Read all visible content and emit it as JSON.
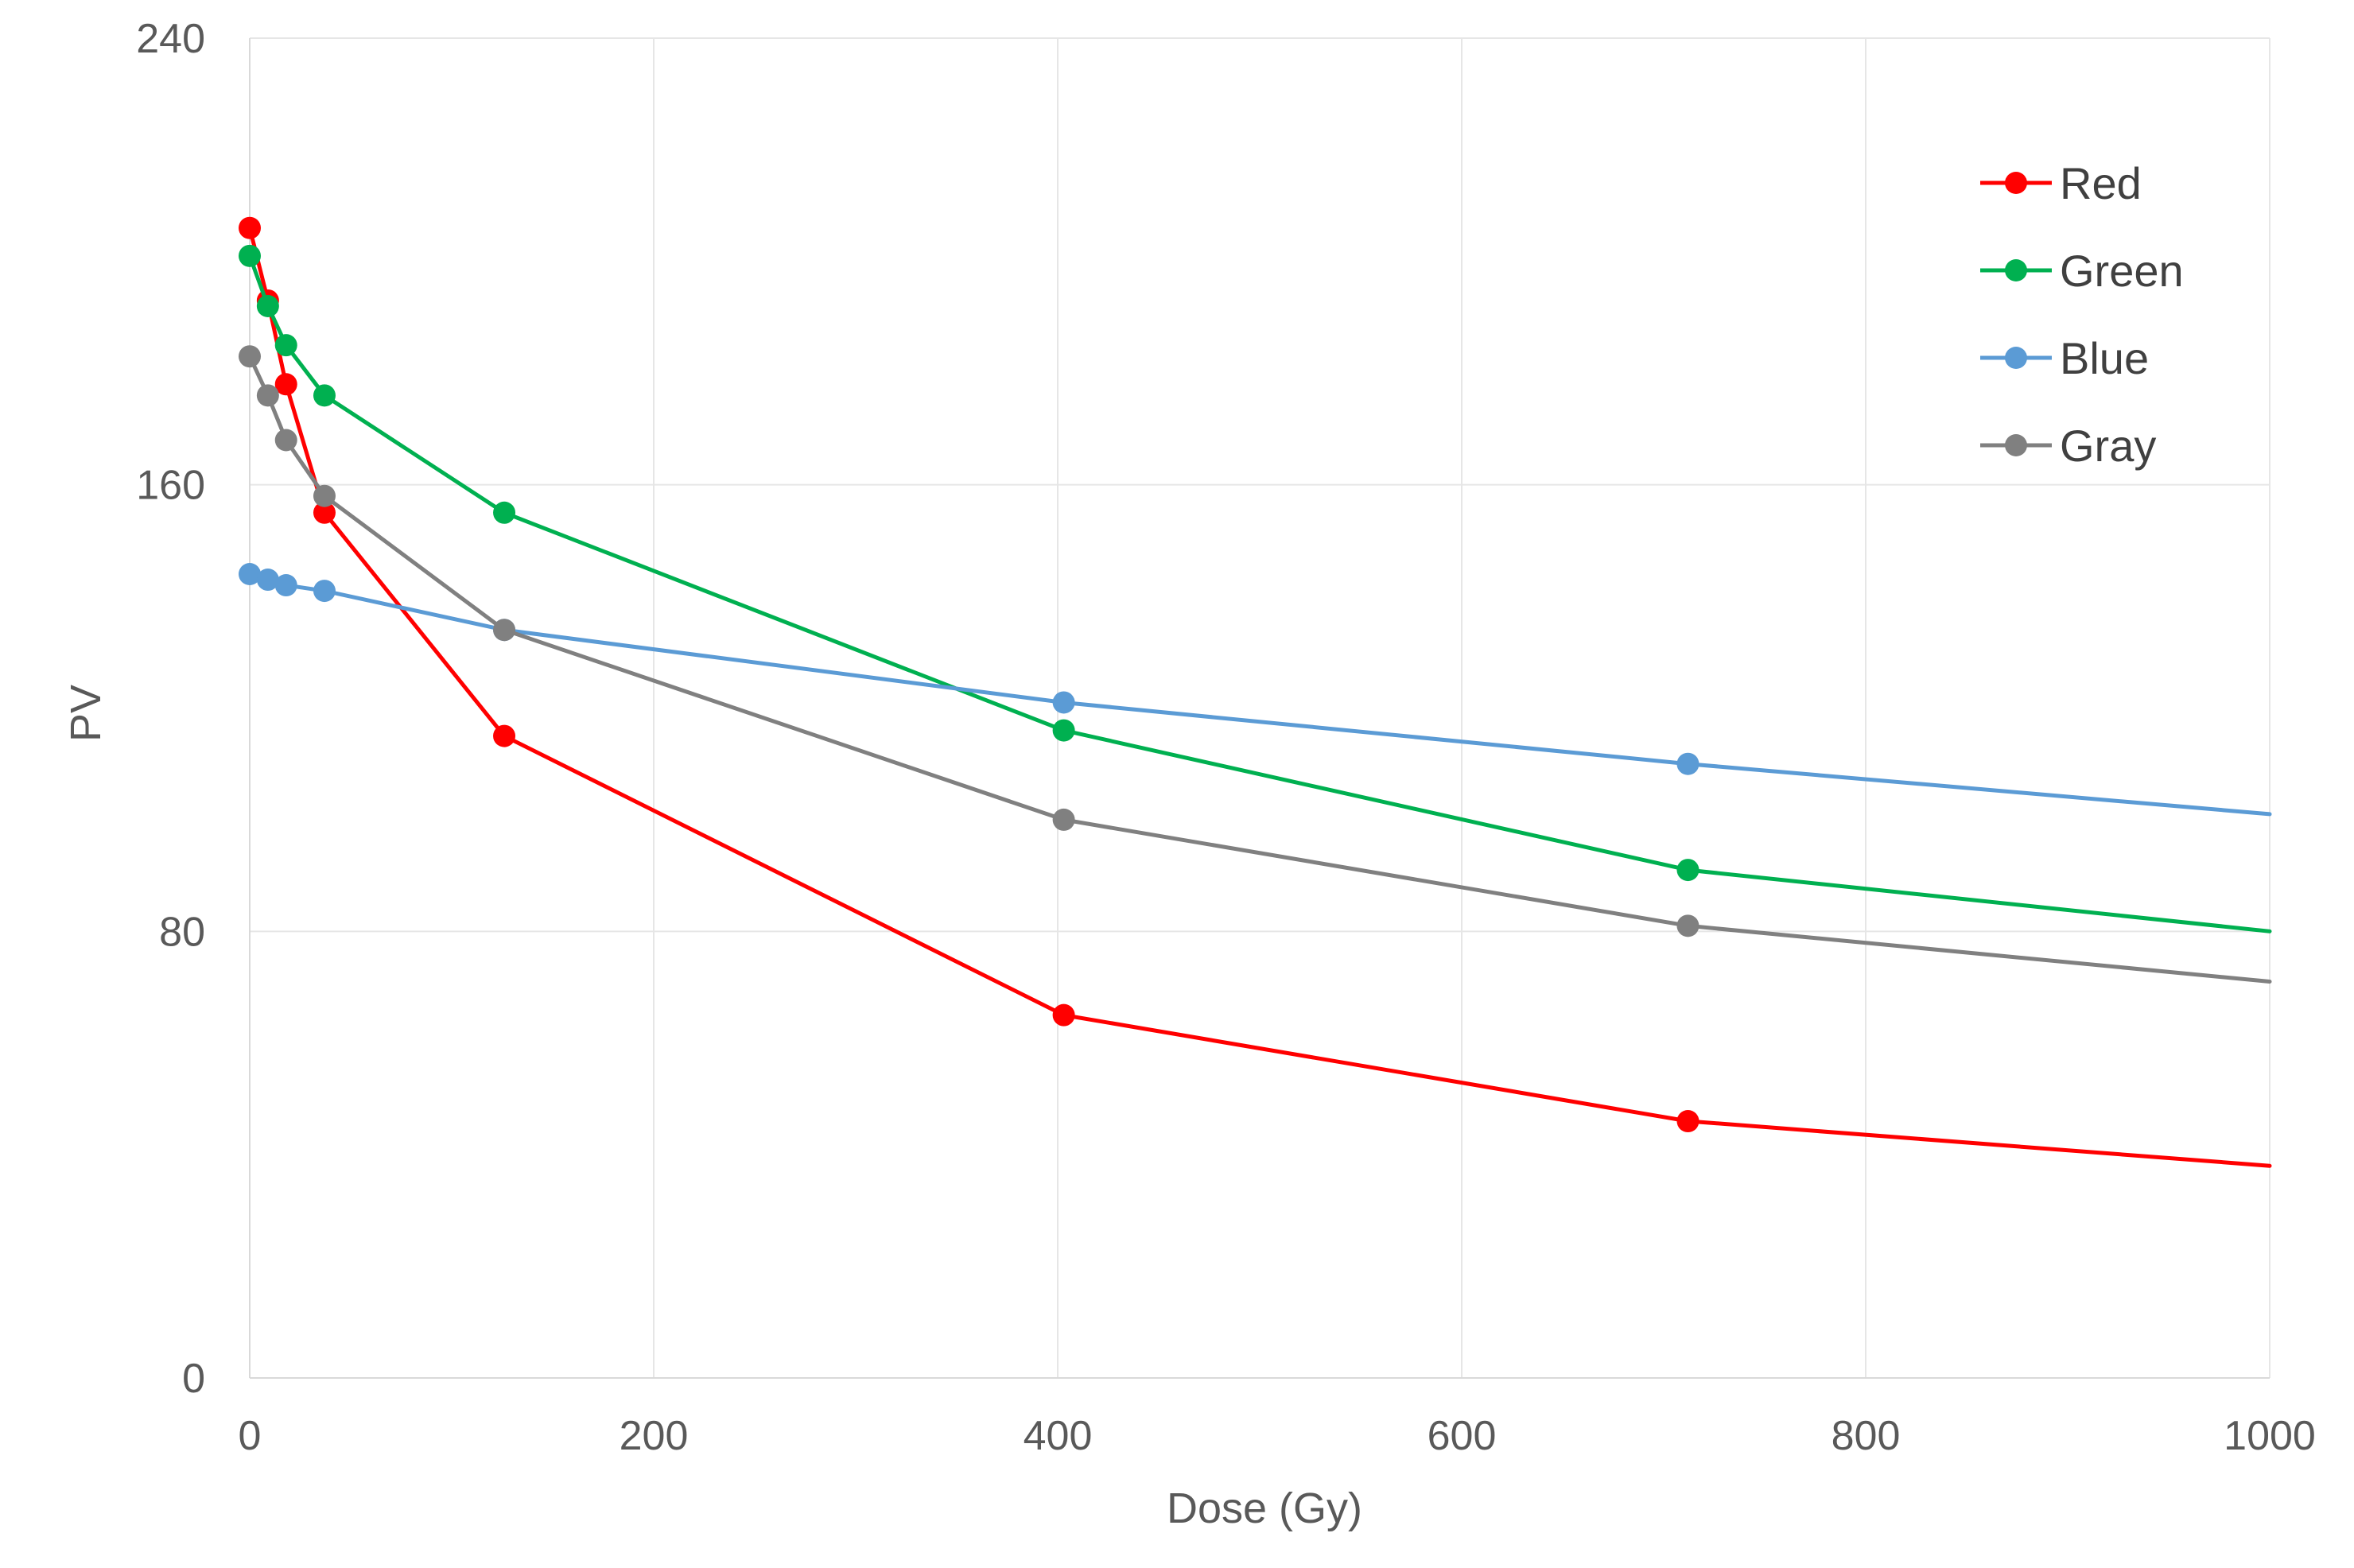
{
  "chart_data": {
    "type": "line",
    "title": "",
    "xlabel": "Dose (Gy)",
    "ylabel": "PV",
    "xlim": [
      0,
      1000
    ],
    "ylim": [
      0,
      240
    ],
    "xticks": [
      0,
      200,
      400,
      600,
      800,
      1000
    ],
    "yticks": [
      0,
      80,
      160,
      240
    ],
    "grid": true,
    "legend": "top-right",
    "x": [
      0,
      9,
      18,
      37,
      126,
      403,
      712,
      1000
    ],
    "series": [
      {
        "name": "Red",
        "color": "#ff0000",
        "values": [
          206,
          193,
          178,
          155,
          115,
          65,
          46,
          38
        ]
      },
      {
        "name": "Green",
        "color": "#00b050",
        "values": [
          201,
          192,
          185,
          176,
          155,
          116,
          91,
          80
        ]
      },
      {
        "name": "Blue",
        "color": "#5b9bd5",
        "values": [
          144,
          143,
          142,
          141,
          134,
          121,
          110,
          101
        ]
      },
      {
        "name": "Gray",
        "color": "#808080",
        "values": [
          183,
          176,
          168,
          158,
          134,
          100,
          81,
          71
        ]
      }
    ]
  }
}
